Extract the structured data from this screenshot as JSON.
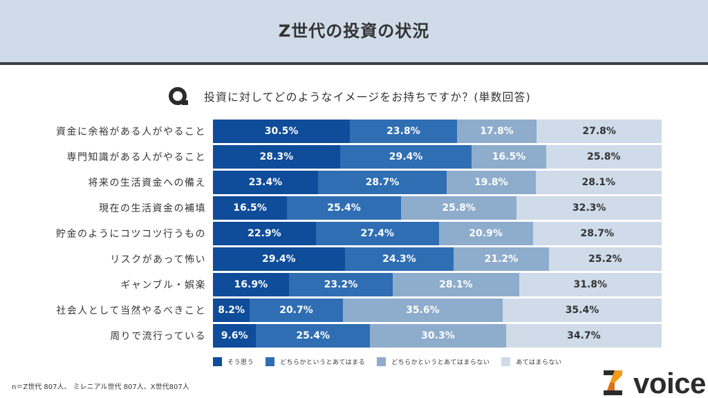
{
  "header": {
    "title": "Z世代の投資の状況"
  },
  "question": {
    "icon": "q-letter-icon",
    "text": "投資に対してどのようなイメージをお持ちですか？(単数回答)"
  },
  "colors": {
    "series": [
      "#0f4c9a",
      "#2f6eb3",
      "#8eaccb",
      "#cfdbe8"
    ],
    "label_text": [
      "#ffffff",
      "#ffffff",
      "#ffffff",
      "#333333"
    ],
    "header_bg": "#cfdbe8",
    "header_rule": "#3a3d44",
    "logo_dark": "#2b2b2b",
    "logo_orange": "#f39a1e",
    "logo_orange_dark": "#d9731c"
  },
  "chart_data": {
    "type": "bar",
    "orientation": "horizontal",
    "stacked": true,
    "normalized": "100%",
    "title": "投資に対してどのようなイメージをお持ちですか？(単数回答)",
    "xlabel": "",
    "ylabel": "",
    "xlim": [
      0,
      100
    ],
    "grid": false,
    "legend_position": "bottom",
    "categories": [
      "資金に余裕がある人がやること",
      "専門知識がある人がやること",
      "将来の生活資金への備え",
      "現在の生活資金の補填",
      "貯金のようにコツコツ行うもの",
      "リスクがあって怖い",
      "ギャンブル・娯楽",
      "社会人として当然やるべきこと",
      "周りで流行っている"
    ],
    "series": [
      {
        "name": "そう思う",
        "values": [
          30.5,
          28.3,
          23.4,
          16.5,
          22.9,
          29.4,
          16.9,
          8.2,
          9.6
        ]
      },
      {
        "name": "どちらかというとあてはまる",
        "values": [
          23.8,
          29.4,
          28.7,
          25.4,
          27.4,
          24.3,
          23.2,
          20.7,
          25.4
        ]
      },
      {
        "name": "どちらかというとあてはまらない",
        "values": [
          17.8,
          16.5,
          19.8,
          25.8,
          20.9,
          21.2,
          28.1,
          35.6,
          30.3
        ]
      },
      {
        "name": "あてはまらない",
        "values": [
          27.8,
          25.8,
          28.1,
          32.3,
          28.7,
          25.2,
          31.8,
          35.4,
          34.7
        ]
      }
    ],
    "value_suffix": "%"
  },
  "footnote": "n＝Z世代 807人、 ミレニアル世代 807人、X世代807人",
  "logo": {
    "icon": "z-logo-icon",
    "word": "voice"
  }
}
